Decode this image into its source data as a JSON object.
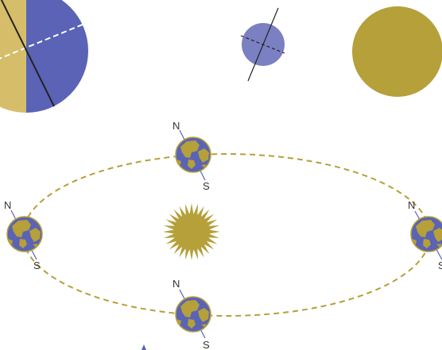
{
  "colors": {
    "earth_blue": "#5a63b5",
    "land_gold": "#b5a03a",
    "day_side": "#d6bd6a",
    "small_planet": "#7b80c2",
    "sun_gold": "#b5a03a",
    "orbit": "#b5a03a",
    "axis": "#222222"
  },
  "icons": {
    "sun": "sun-icon",
    "earth": "globe-icon"
  },
  "earths": [
    {
      "north_label": "N",
      "south_label": "S"
    },
    {
      "north_label": "N",
      "south_label": "S"
    },
    {
      "north_label": "N",
      "south_label": "S"
    },
    {
      "north_label": "N",
      "south_label": "S"
    }
  ]
}
